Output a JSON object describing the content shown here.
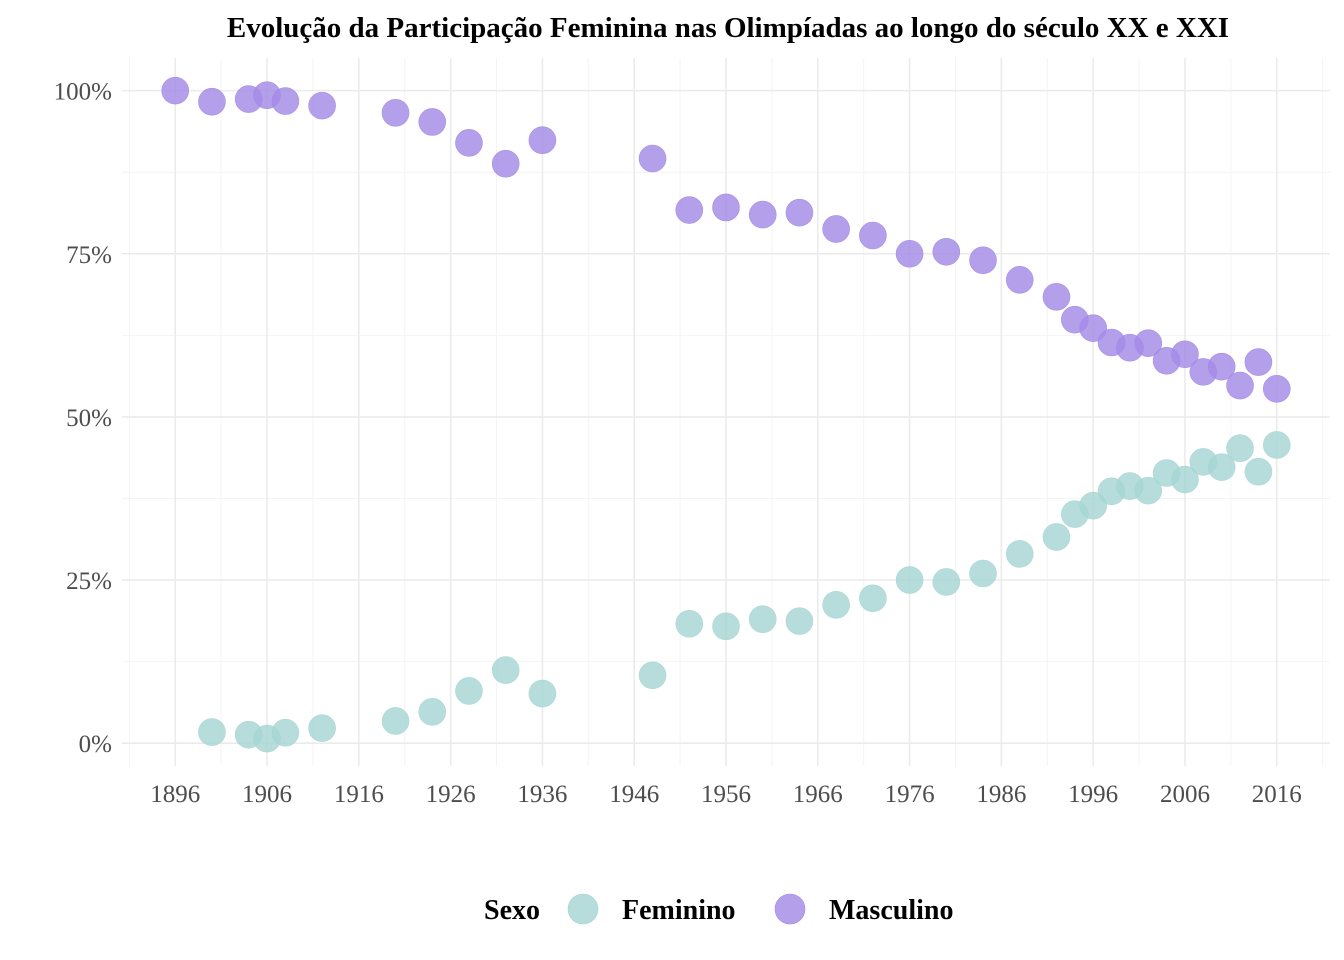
{
  "chart_data": {
    "type": "scatter",
    "title": "Evolução da Participação Feminina nas Olimpíadas ao longo do século XX e XXI",
    "xlabel": "",
    "ylabel": "",
    "xlim": [
      1890.2,
      2021.8
    ],
    "ylim": [
      -0.035,
      1.05
    ],
    "x_ticks": [
      1896,
      1906,
      1916,
      1926,
      1936,
      1946,
      1956,
      1966,
      1976,
      1986,
      1996,
      2006,
      2016
    ],
    "x_tick_labels": [
      "1896",
      "1906",
      "1916",
      "1926",
      "1936",
      "1946",
      "1956",
      "1966",
      "1976",
      "1986",
      "1996",
      "2006",
      "2016"
    ],
    "y_ticks": [
      0,
      0.25,
      0.5,
      0.75,
      1.0
    ],
    "y_tick_labels": [
      "0%",
      "25%",
      "50%",
      "75%",
      "100%"
    ],
    "grid": true,
    "legend": {
      "title": "Sexo",
      "position": "bottom"
    },
    "series": [
      {
        "name": "Feminino",
        "color": "#a6d5d3",
        "points": [
          [
            1900,
            0.017
          ],
          [
            1904,
            0.013
          ],
          [
            1906,
            0.007
          ],
          [
            1908,
            0.016
          ],
          [
            1912,
            0.023
          ],
          [
            1920,
            0.034
          ],
          [
            1924,
            0.048
          ],
          [
            1928,
            0.08
          ],
          [
            1932,
            0.112
          ],
          [
            1936,
            0.076
          ],
          [
            1948,
            0.104
          ],
          [
            1952,
            0.183
          ],
          [
            1956,
            0.179
          ],
          [
            1960,
            0.19
          ],
          [
            1964,
            0.187
          ],
          [
            1968,
            0.212
          ],
          [
            1972,
            0.222
          ],
          [
            1976,
            0.25
          ],
          [
            1980,
            0.247
          ],
          [
            1984,
            0.26
          ],
          [
            1988,
            0.29
          ],
          [
            1992,
            0.316
          ],
          [
            1994,
            0.351
          ],
          [
            1996,
            0.364
          ],
          [
            1998,
            0.386
          ],
          [
            2000,
            0.394
          ],
          [
            2002,
            0.387
          ],
          [
            2004,
            0.414
          ],
          [
            2006,
            0.404
          ],
          [
            2008,
            0.431
          ],
          [
            2010,
            0.423
          ],
          [
            2012,
            0.452
          ],
          [
            2014,
            0.416
          ],
          [
            2016,
            0.457
          ]
        ]
      },
      {
        "name": "Masculino",
        "color": "#a48ae6",
        "points": [
          [
            1896,
            1.0
          ],
          [
            1900,
            0.983
          ],
          [
            1904,
            0.987
          ],
          [
            1906,
            0.993
          ],
          [
            1908,
            0.984
          ],
          [
            1912,
            0.977
          ],
          [
            1920,
            0.966
          ],
          [
            1924,
            0.952
          ],
          [
            1928,
            0.92
          ],
          [
            1932,
            0.888
          ],
          [
            1936,
            0.924
          ],
          [
            1948,
            0.896
          ],
          [
            1952,
            0.817
          ],
          [
            1956,
            0.821
          ],
          [
            1960,
            0.81
          ],
          [
            1964,
            0.813
          ],
          [
            1968,
            0.788
          ],
          [
            1972,
            0.778
          ],
          [
            1976,
            0.75
          ],
          [
            1980,
            0.753
          ],
          [
            1984,
            0.74
          ],
          [
            1988,
            0.71
          ],
          [
            1992,
            0.684
          ],
          [
            1994,
            0.649
          ],
          [
            1996,
            0.636
          ],
          [
            1998,
            0.614
          ],
          [
            2000,
            0.606
          ],
          [
            2002,
            0.613
          ],
          [
            2004,
            0.586
          ],
          [
            2006,
            0.596
          ],
          [
            2008,
            0.569
          ],
          [
            2010,
            0.577
          ],
          [
            2012,
            0.548
          ],
          [
            2014,
            0.584
          ],
          [
            2016,
            0.543
          ]
        ]
      }
    ]
  }
}
